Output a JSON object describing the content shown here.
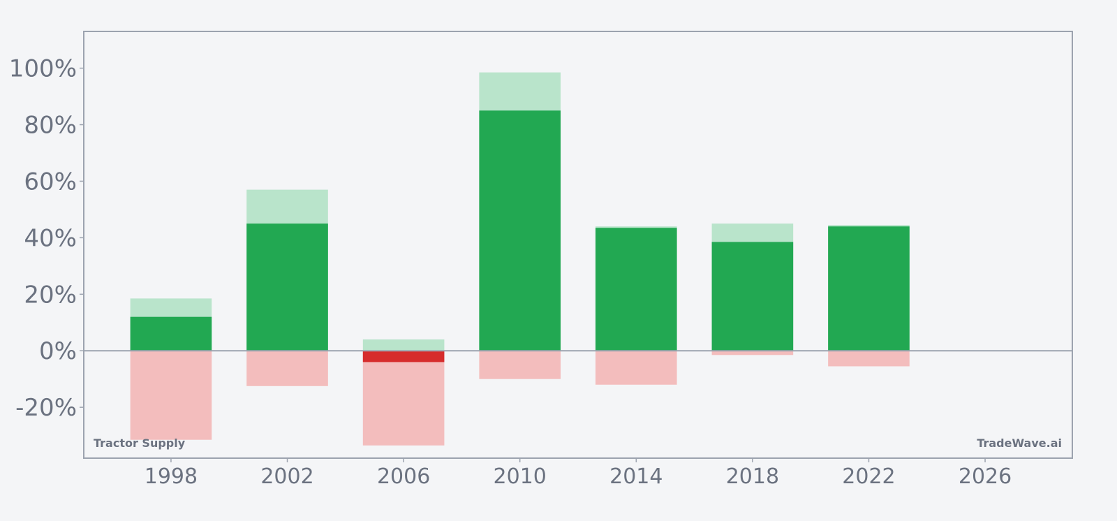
{
  "chart_data": {
    "type": "bar",
    "x": [
      1998,
      2002,
      2006,
      2010,
      2014,
      2018,
      2022
    ],
    "series": [
      {
        "role": "high",
        "values": [
          18.5,
          57.0,
          4.0,
          98.5,
          44.0,
          45.0,
          44.5
        ]
      },
      {
        "role": "close",
        "values": [
          12.0,
          45.0,
          -4.0,
          85.0,
          43.5,
          38.5,
          44.0
        ]
      },
      {
        "role": "low",
        "values": [
          -31.5,
          -12.5,
          -33.5,
          -10.0,
          -12.0,
          -1.5,
          -5.5
        ]
      }
    ],
    "xlim": [
      1995,
      2029
    ],
    "ylim": [
      -38,
      113
    ],
    "x_ticks": [
      1998,
      2002,
      2006,
      2010,
      2014,
      2018,
      2022,
      2026
    ],
    "x_tick_labels": [
      "1998",
      "2002",
      "2006",
      "2010",
      "2014",
      "2018",
      "2022",
      "2026"
    ],
    "y_ticks": [
      -20,
      0,
      20,
      40,
      60,
      80,
      100
    ],
    "y_tick_labels": [
      "-20%",
      "0%",
      "20%",
      "40%",
      "60%",
      "80%",
      "100%"
    ],
    "bar_width_years": 2.8,
    "grid": false,
    "colors": {
      "positive": "#22a852",
      "positive_light": "#b9e4cb",
      "negative": "#d62c2c",
      "negative_light": "#f3bdbd",
      "axis": "#9ca3af",
      "zero_line": "#9ca3af",
      "text": "#6b7280",
      "background": "#f4f5f7"
    }
  },
  "watermark_left": "Tractor Supply",
  "watermark_right": "TradeWave.ai"
}
